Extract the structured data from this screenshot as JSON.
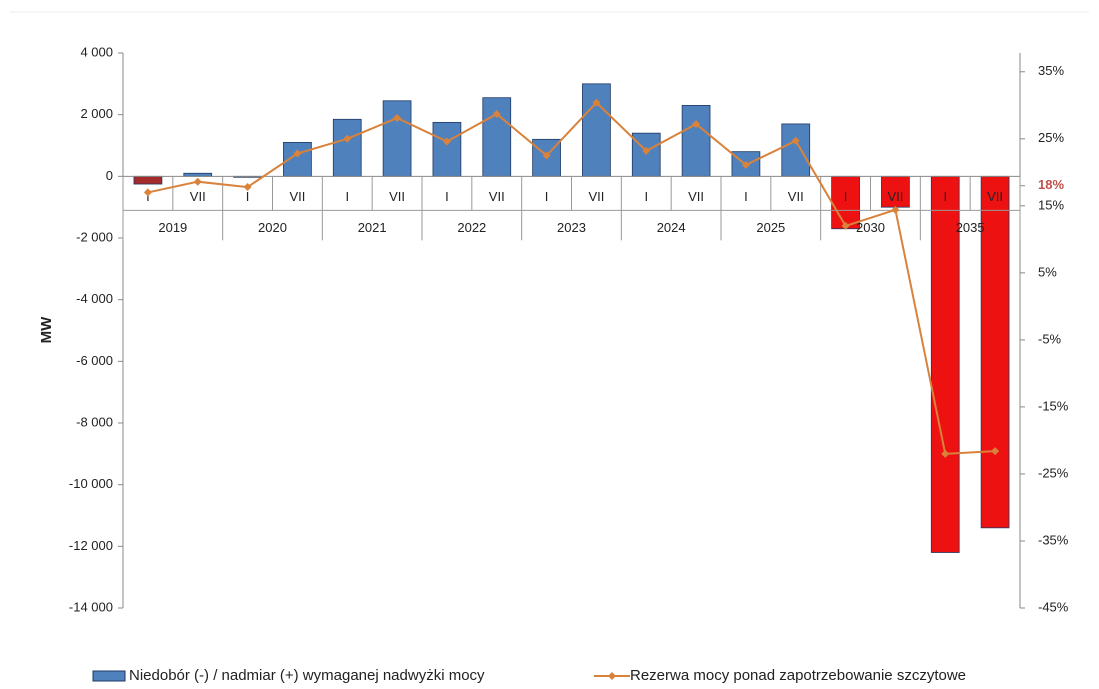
{
  "chart_data": {
    "type": "bar_line",
    "y_label": "MW",
    "categories": [
      "I",
      "VII",
      "I",
      "VII",
      "I",
      "VII",
      "I",
      "VII",
      "I",
      "VII",
      "I",
      "VII",
      "I",
      "VII",
      "I",
      "VII",
      "I",
      "VII"
    ],
    "groups": [
      "2019",
      "2020",
      "2021",
      "2022",
      "2023",
      "2024",
      "2025",
      "2030",
      "2035"
    ],
    "series": [
      {
        "name": "Niedobór (-) / nadmiar (+) wymaganej nadwyżki mocy",
        "type": "bar",
        "color": "#4f81bd",
        "colors": [
          "#a52a2a",
          "#4f81bd",
          "#a52a2a",
          "#4f81bd",
          "#4f81bd",
          "#4f81bd",
          "#4f81bd",
          "#4f81bd",
          "#4f81bd",
          "#4f81bd",
          "#4f81bd",
          "#4f81bd",
          "#4f81bd",
          "#4f81bd",
          "#ee1111",
          "#ee1111",
          "#ee1111",
          "#ee1111"
        ],
        "values": [
          -250,
          100,
          -30,
          1100,
          1850,
          2450,
          1750,
          2550,
          1200,
          3000,
          1400,
          2300,
          800,
          1700,
          -1700,
          -1000,
          -12200,
          -11400
        ]
      },
      {
        "name": "Rezerwa mocy ponad zapotrzebowanie szczytowe",
        "type": "line",
        "axis": "y2",
        "color": "#d9823b",
        "values": [
          17,
          18.6,
          17.8,
          22.8,
          25,
          28.1,
          24.6,
          28.7,
          22.5,
          30.4,
          23.2,
          27.2,
          21.1,
          24.7,
          12,
          14.4,
          -22,
          -21.6
        ]
      }
    ],
    "ylim": [
      -14000,
      4000
    ],
    "yticks": [
      {
        "value": 4000,
        "label": "4 000"
      },
      {
        "value": 2000,
        "label": "2 000"
      },
      0,
      {
        "value": -2000,
        "label": "-2 000"
      },
      {
        "value": -4000,
        "label": "-4 000"
      },
      {
        "value": -6000,
        "label": "-6 000"
      },
      {
        "value": -8000,
        "label": "-8 000"
      },
      {
        "value": -10000,
        "label": "-10 000"
      },
      {
        "value": -12000,
        "label": "-12 000"
      },
      {
        "value": -14000,
        "label": "-14 000"
      }
    ],
    "y2lim": [
      -45,
      37.8
    ],
    "y2ticks": [
      {
        "value": 35,
        "label": "35%"
      },
      {
        "value": 25,
        "label": "25%"
      },
      {
        "value": 18,
        "label": "18%",
        "color": "#c0504d"
      },
      {
        "value": 15,
        "label": "15%"
      },
      {
        "value": 5,
        "label": "5%"
      },
      {
        "value": -5,
        "label": "-5%"
      },
      {
        "value": -15,
        "label": "-15%"
      },
      {
        "value": -25,
        "label": "-25%"
      },
      {
        "value": -35,
        "label": "-35%"
      },
      {
        "value": -45,
        "label": "-45%"
      }
    ],
    "legend": "bottom"
  }
}
